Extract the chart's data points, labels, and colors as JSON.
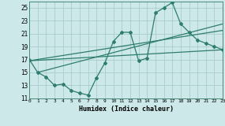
{
  "xlabel": "Humidex (Indice chaleur)",
  "xlim": [
    0,
    23
  ],
  "ylim": [
    11,
    26
  ],
  "xticks": [
    0,
    1,
    2,
    3,
    4,
    5,
    6,
    7,
    8,
    9,
    10,
    11,
    12,
    13,
    14,
    15,
    16,
    17,
    18,
    19,
    20,
    21,
    22,
    23
  ],
  "yticks": [
    11,
    13,
    15,
    17,
    19,
    21,
    23,
    25
  ],
  "background_color": "#cce8e8",
  "grid_color": "#aacccc",
  "line_color": "#2e7d6e",
  "line1_x": [
    0,
    1,
    2,
    3,
    4,
    5,
    6,
    7,
    8,
    9,
    10,
    11,
    12,
    13,
    14,
    15,
    16,
    17,
    18,
    19,
    20,
    21,
    22,
    23
  ],
  "line1_y": [
    17.0,
    15.0,
    14.3,
    13.0,
    13.2,
    12.2,
    11.8,
    11.5,
    14.2,
    16.5,
    19.8,
    21.2,
    21.2,
    16.8,
    17.2,
    24.2,
    25.0,
    25.8,
    22.5,
    21.2,
    20.0,
    19.5,
    19.0,
    18.5
  ],
  "line2_x": [
    0,
    23
  ],
  "line2_y": [
    16.8,
    18.5
  ],
  "line3_x": [
    0,
    23
  ],
  "line3_y": [
    16.8,
    21.5
  ],
  "line4_x": [
    1,
    23
  ],
  "line4_y": [
    15.0,
    22.5
  ]
}
